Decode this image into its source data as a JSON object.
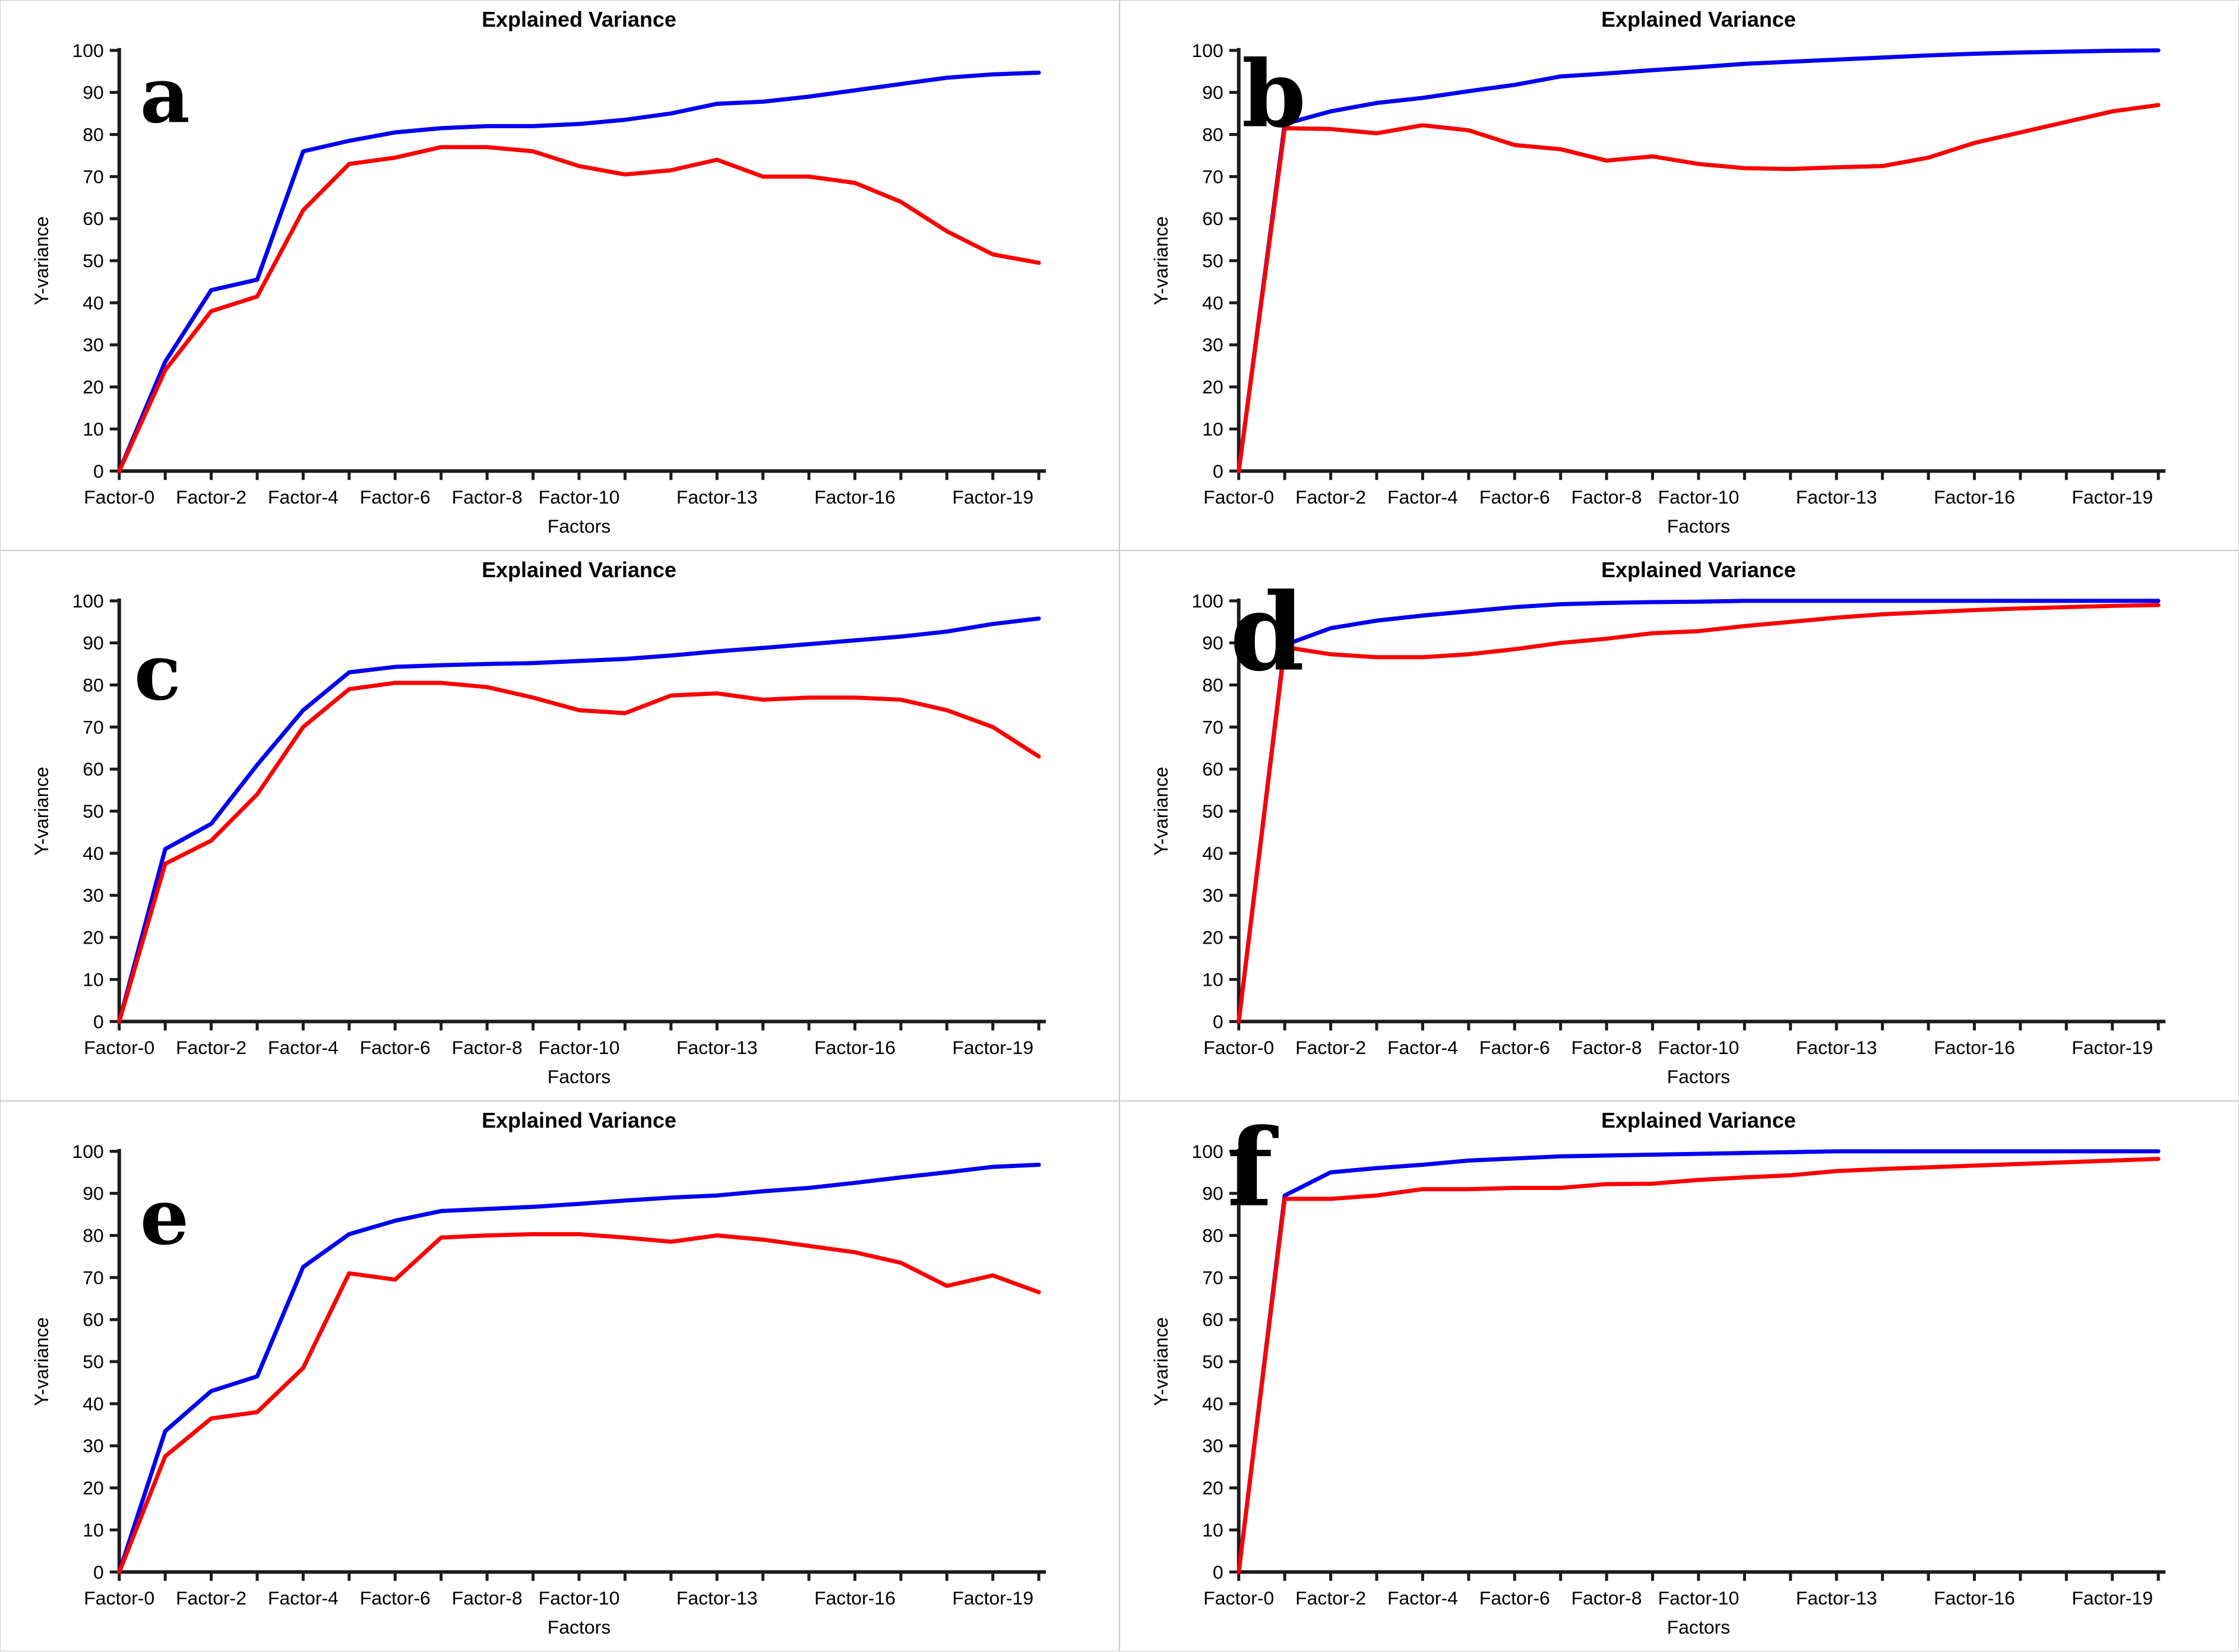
{
  "page": {
    "background": "#ffffff"
  },
  "colors": {
    "blue_line": "#0000f0",
    "red_line": "#fa0202",
    "axis": "#1c1c1c",
    "text": "#000000",
    "panel_border": "#c9c9c9"
  },
  "chart_data": [
    {
      "type": "line",
      "panel_label": "a",
      "title": "Explained Variance",
      "xlabel": "Factors",
      "ylabel": "Y-variance",
      "ylim": [
        0,
        100
      ],
      "yticks": [
        0,
        10,
        20,
        30,
        40,
        50,
        60,
        70,
        80,
        90,
        100
      ],
      "x_values": [
        0,
        1,
        2,
        3,
        4,
        5,
        6,
        7,
        8,
        9,
        10,
        11,
        12,
        13,
        14,
        15,
        16,
        17,
        18,
        19,
        20
      ],
      "xticks": [
        {
          "pos": 0,
          "label": "Factor-0"
        },
        {
          "pos": 2,
          "label": "Factor-2"
        },
        {
          "pos": 4,
          "label": "Factor-4"
        },
        {
          "pos": 6,
          "label": "Factor-6"
        },
        {
          "pos": 8,
          "label": "Factor-8"
        },
        {
          "pos": 10,
          "label": "Factor-10"
        },
        {
          "pos": 13,
          "label": "Factor-13"
        },
        {
          "pos": 16,
          "label": "Factor-16"
        },
        {
          "pos": 19,
          "label": "Factor-19"
        }
      ],
      "series": [
        {
          "name": "blue",
          "color": "#0000f0",
          "values": [
            0,
            26,
            43,
            45.5,
            76,
            78.5,
            80.5,
            81.5,
            82,
            82,
            82.5,
            83.5,
            85,
            87.3,
            87.8,
            89,
            90.5,
            92,
            93.5,
            94.3,
            94.7
          ]
        },
        {
          "name": "red",
          "color": "#fa0202",
          "values": [
            0,
            24,
            38,
            41.5,
            62,
            73,
            74.5,
            77,
            77,
            76,
            72.5,
            70.5,
            71.5,
            74,
            70,
            70,
            68.5,
            64,
            57,
            51.5,
            49.5
          ]
        }
      ],
      "letter": {
        "x": 235,
        "y": 205,
        "size": 130
      }
    },
    {
      "type": "line",
      "panel_label": "b",
      "title": "Explained Variance",
      "xlabel": "Factors",
      "ylabel": "Y-variance",
      "ylim": [
        0,
        100
      ],
      "yticks": [
        0,
        10,
        20,
        30,
        40,
        50,
        60,
        70,
        80,
        90,
        100
      ],
      "x_values": [
        0,
        1,
        2,
        3,
        4,
        5,
        6,
        7,
        8,
        9,
        10,
        11,
        12,
        13,
        14,
        15,
        16,
        17,
        18,
        19,
        20
      ],
      "xticks": [
        {
          "pos": 0,
          "label": "Factor-0"
        },
        {
          "pos": 2,
          "label": "Factor-2"
        },
        {
          "pos": 4,
          "label": "Factor-4"
        },
        {
          "pos": 6,
          "label": "Factor-6"
        },
        {
          "pos": 8,
          "label": "Factor-8"
        },
        {
          "pos": 10,
          "label": "Factor-10"
        },
        {
          "pos": 13,
          "label": "Factor-13"
        },
        {
          "pos": 16,
          "label": "Factor-16"
        },
        {
          "pos": 19,
          "label": "Factor-19"
        }
      ],
      "series": [
        {
          "name": "blue",
          "color": "#0000f0",
          "values": [
            0,
            82.5,
            85.5,
            87.5,
            88.7,
            90.3,
            91.8,
            93.8,
            94.5,
            95.3,
            96,
            96.8,
            97.3,
            97.8,
            98.3,
            98.8,
            99.2,
            99.5,
            99.7,
            99.9,
            100
          ]
        },
        {
          "name": "red",
          "color": "#fa0202",
          "values": [
            0,
            81.5,
            81.3,
            80.3,
            82.2,
            81,
            77.5,
            76.5,
            73.8,
            74.8,
            73,
            72,
            71.8,
            72.2,
            72.5,
            74.5,
            78,
            80.5,
            83,
            85.5,
            87
          ]
        }
      ],
      "letter": {
        "x": 205,
        "y": 212,
        "size": 155
      }
    },
    {
      "type": "line",
      "panel_label": "c",
      "title": "Explained Variance",
      "xlabel": "Factors",
      "ylabel": "Y-variance",
      "ylim": [
        0,
        100
      ],
      "yticks": [
        0,
        10,
        20,
        30,
        40,
        50,
        60,
        70,
        80,
        90,
        100
      ],
      "x_values": [
        0,
        1,
        2,
        3,
        4,
        5,
        6,
        7,
        8,
        9,
        10,
        11,
        12,
        13,
        14,
        15,
        16,
        17,
        18,
        19,
        20
      ],
      "xticks": [
        {
          "pos": 0,
          "label": "Factor-0"
        },
        {
          "pos": 2,
          "label": "Factor-2"
        },
        {
          "pos": 4,
          "label": "Factor-4"
        },
        {
          "pos": 6,
          "label": "Factor-6"
        },
        {
          "pos": 8,
          "label": "Factor-8"
        },
        {
          "pos": 10,
          "label": "Factor-10"
        },
        {
          "pos": 13,
          "label": "Factor-13"
        },
        {
          "pos": 16,
          "label": "Factor-16"
        },
        {
          "pos": 19,
          "label": "Factor-19"
        }
      ],
      "series": [
        {
          "name": "blue",
          "color": "#0000f0",
          "values": [
            0,
            41,
            47,
            61,
            74,
            83,
            84.3,
            84.7,
            85,
            85.2,
            85.7,
            86.2,
            87,
            88,
            88.8,
            89.7,
            90.6,
            91.5,
            92.7,
            94.5,
            95.8
          ]
        },
        {
          "name": "red",
          "color": "#fa0202",
          "values": [
            0,
            37.5,
            43,
            54,
            70,
            79,
            80.5,
            80.5,
            79.5,
            77,
            74,
            73.3,
            77.5,
            78,
            76.5,
            77,
            77,
            76.5,
            74,
            70,
            63
          ]
        }
      ],
      "letter": {
        "x": 225,
        "y": 250,
        "size": 130
      }
    },
    {
      "type": "line",
      "panel_label": "d",
      "title": "Explained Variance",
      "xlabel": "Factors",
      "ylabel": "Y-variance",
      "ylim": [
        0,
        100
      ],
      "yticks": [
        0,
        10,
        20,
        30,
        40,
        50,
        60,
        70,
        80,
        90,
        100
      ],
      "x_values": [
        0,
        1,
        2,
        3,
        4,
        5,
        6,
        7,
        8,
        9,
        10,
        11,
        12,
        13,
        14,
        15,
        16,
        17,
        18,
        19,
        20
      ],
      "xticks": [
        {
          "pos": 0,
          "label": "Factor-0"
        },
        {
          "pos": 2,
          "label": "Factor-2"
        },
        {
          "pos": 4,
          "label": "Factor-4"
        },
        {
          "pos": 6,
          "label": "Factor-6"
        },
        {
          "pos": 8,
          "label": "Factor-8"
        },
        {
          "pos": 10,
          "label": "Factor-10"
        },
        {
          "pos": 13,
          "label": "Factor-13"
        },
        {
          "pos": 16,
          "label": "Factor-16"
        },
        {
          "pos": 19,
          "label": "Factor-19"
        }
      ],
      "series": [
        {
          "name": "blue",
          "color": "#0000f0",
          "values": [
            0,
            89.5,
            93.5,
            95.3,
            96.5,
            97.5,
            98.5,
            99.2,
            99.5,
            99.7,
            99.8,
            100,
            100,
            100,
            100,
            100,
            100,
            100,
            100,
            100,
            100
          ]
        },
        {
          "name": "red",
          "color": "#fa0202",
          "values": [
            0,
            89,
            87.3,
            86.6,
            86.6,
            87.3,
            88.5,
            90,
            91,
            92.3,
            92.8,
            94,
            95,
            96,
            96.8,
            97.3,
            97.8,
            98.2,
            98.5,
            98.8,
            99
          ]
        }
      ],
      "letter": {
        "x": 185,
        "y": 200,
        "size": 180
      }
    },
    {
      "type": "line",
      "panel_label": "e",
      "title": "Explained Variance",
      "xlabel": "Factors",
      "ylabel": "Y-variance",
      "ylim": [
        0,
        100
      ],
      "yticks": [
        0,
        10,
        20,
        30,
        40,
        50,
        60,
        70,
        80,
        90,
        100
      ],
      "x_values": [
        0,
        1,
        2,
        3,
        4,
        5,
        6,
        7,
        8,
        9,
        10,
        11,
        12,
        13,
        14,
        15,
        16,
        17,
        18,
        19,
        20
      ],
      "xticks": [
        {
          "pos": 0,
          "label": "Factor-0"
        },
        {
          "pos": 2,
          "label": "Factor-2"
        },
        {
          "pos": 4,
          "label": "Factor-4"
        },
        {
          "pos": 6,
          "label": "Factor-6"
        },
        {
          "pos": 8,
          "label": "Factor-8"
        },
        {
          "pos": 10,
          "label": "Factor-10"
        },
        {
          "pos": 13,
          "label": "Factor-13"
        },
        {
          "pos": 16,
          "label": "Factor-16"
        },
        {
          "pos": 19,
          "label": "Factor-19"
        }
      ],
      "series": [
        {
          "name": "blue",
          "color": "#0000f0",
          "values": [
            0,
            33.5,
            43,
            46.5,
            72.5,
            80.3,
            83.5,
            85.8,
            86.3,
            86.8,
            87.5,
            88.3,
            89,
            89.5,
            90.5,
            91.3,
            92.5,
            93.8,
            95,
            96.3,
            96.8
          ]
        },
        {
          "name": "red",
          "color": "#fa0202",
          "values": [
            0,
            27.5,
            36.5,
            38,
            48.5,
            71,
            69.5,
            79.5,
            80,
            80.3,
            80.3,
            79.5,
            78.5,
            80,
            79,
            77.5,
            76,
            73.5,
            68,
            70.5,
            66.5
          ]
        }
      ],
      "letter": {
        "x": 235,
        "y": 240,
        "size": 130
      }
    },
    {
      "type": "line",
      "panel_label": "f",
      "title": "Explained Variance",
      "xlabel": "Factors",
      "ylabel": "Y-variance",
      "ylim": [
        0,
        100
      ],
      "yticks": [
        0,
        10,
        20,
        30,
        40,
        50,
        60,
        70,
        80,
        90,
        100
      ],
      "x_values": [
        0,
        1,
        2,
        3,
        4,
        5,
        6,
        7,
        8,
        9,
        10,
        11,
        12,
        13,
        14,
        15,
        16,
        17,
        18,
        19,
        20
      ],
      "xticks": [
        {
          "pos": 0,
          "label": "Factor-0"
        },
        {
          "pos": 2,
          "label": "Factor-2"
        },
        {
          "pos": 4,
          "label": "Factor-4"
        },
        {
          "pos": 6,
          "label": "Factor-6"
        },
        {
          "pos": 8,
          "label": "Factor-8"
        },
        {
          "pos": 10,
          "label": "Factor-10"
        },
        {
          "pos": 13,
          "label": "Factor-13"
        },
        {
          "pos": 16,
          "label": "Factor-16"
        },
        {
          "pos": 19,
          "label": "Factor-19"
        }
      ],
      "series": [
        {
          "name": "blue",
          "color": "#0000f0",
          "values": [
            0,
            89.5,
            95,
            96,
            96.8,
            97.8,
            98.3,
            98.8,
            99,
            99.2,
            99.4,
            99.6,
            99.8,
            100,
            100,
            100,
            100,
            100,
            100,
            100,
            100
          ]
        },
        {
          "name": "red",
          "color": "#fa0202",
          "values": [
            0,
            88.7,
            88.7,
            89.5,
            91,
            91,
            91.3,
            91.3,
            92.2,
            92.3,
            93.2,
            93.8,
            94.3,
            95.3,
            95.8,
            96.2,
            96.6,
            97,
            97.4,
            97.8,
            98.2
          ]
        }
      ],
      "letter": {
        "x": 180,
        "y": 175,
        "size": 180
      }
    }
  ]
}
